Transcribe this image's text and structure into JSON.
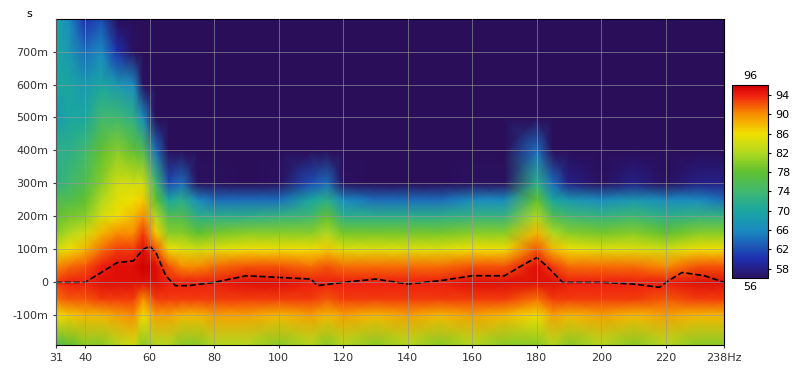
{
  "chart_data": {
    "type": "heatmap",
    "y_label": "s",
    "x": [
      31,
      35,
      40,
      45,
      50,
      55,
      58,
      62,
      66,
      70,
      75,
      80,
      90,
      100,
      110,
      115,
      120,
      130,
      140,
      150,
      160,
      170,
      180,
      185,
      190,
      200,
      210,
      220,
      230,
      238
    ],
    "y": [
      -0.19,
      -0.1,
      -0.05,
      0,
      0.05,
      0.1,
      0.15,
      0.2,
      0.25,
      0.3,
      0.4,
      0.5,
      0.6,
      0.7,
      0.8
    ],
    "cells": [
      [
        76,
        78,
        80,
        80,
        82,
        84,
        80,
        82,
        82,
        80,
        80,
        82,
        82,
        80,
        82,
        80,
        82,
        80,
        82,
        80,
        82,
        80,
        80,
        82,
        80,
        82,
        80,
        82,
        80,
        80
      ],
      [
        86,
        87,
        88,
        88,
        89,
        90,
        86,
        89,
        89,
        88,
        88,
        89,
        89,
        88,
        89,
        88,
        89,
        88,
        89,
        88,
        89,
        88,
        86,
        89,
        88,
        89,
        88,
        89,
        88,
        88
      ],
      [
        91,
        92,
        92,
        93,
        93,
        93,
        90,
        93,
        93,
        93,
        93,
        93,
        93,
        93,
        93,
        92,
        93,
        93,
        93,
        93,
        93,
        93,
        91,
        93,
        93,
        93,
        93,
        92,
        93,
        93
      ],
      [
        93,
        94,
        94,
        95,
        95,
        95,
        95,
        95,
        94,
        94,
        94,
        94,
        95,
        95,
        94,
        94,
        94,
        94,
        94,
        94,
        95,
        95,
        95,
        95,
        94,
        94,
        94,
        94,
        95,
        95
      ],
      [
        90,
        91,
        92,
        94,
        95,
        95,
        96,
        95,
        92,
        90,
        90,
        91,
        92,
        92,
        91,
        92,
        91,
        91,
        91,
        91,
        92,
        92,
        95,
        93,
        91,
        91,
        91,
        90,
        92,
        92
      ],
      [
        84,
        86,
        88,
        91,
        93,
        93,
        95,
        92,
        86,
        85,
        84,
        85,
        86,
        86,
        86,
        87,
        85,
        85,
        85,
        85,
        86,
        86,
        92,
        88,
        86,
        85,
        85,
        84,
        86,
        86
      ],
      [
        80,
        82,
        84,
        88,
        90,
        90,
        93,
        87,
        80,
        80,
        78,
        79,
        80,
        80,
        80,
        82,
        79,
        79,
        79,
        79,
        80,
        80,
        88,
        82,
        80,
        79,
        80,
        78,
        80,
        80
      ],
      [
        78,
        79,
        80,
        84,
        86,
        88,
        90,
        82,
        76,
        76,
        72,
        72,
        72,
        73,
        74,
        78,
        72,
        72,
        72,
        72,
        73,
        73,
        82,
        76,
        74,
        73,
        74,
        72,
        73,
        73
      ],
      [
        76,
        76,
        78,
        82,
        85,
        86,
        87,
        78,
        70,
        72,
        66,
        64,
        64,
        64,
        70,
        72,
        66,
        64,
        64,
        64,
        66,
        66,
        78,
        70,
        68,
        66,
        68,
        66,
        66,
        64
      ],
      [
        72,
        74,
        76,
        80,
        84,
        84,
        84,
        74,
        62,
        64,
        56,
        56,
        54,
        56,
        62,
        64,
        56,
        54,
        54,
        54,
        56,
        56,
        72,
        64,
        58,
        56,
        58,
        56,
        58,
        58
      ],
      [
        72,
        72,
        74,
        78,
        80,
        78,
        76,
        64,
        50,
        50,
        48,
        48,
        46,
        48,
        48,
        50,
        48,
        46,
        46,
        46,
        48,
        48,
        64,
        54,
        50,
        48,
        48,
        48,
        48,
        48
      ],
      [
        68,
        70,
        70,
        74,
        74,
        72,
        66,
        54,
        46,
        46,
        44,
        44,
        44,
        44,
        44,
        44,
        44,
        44,
        44,
        44,
        44,
        44,
        54,
        48,
        44,
        44,
        44,
        44,
        44,
        44
      ],
      [
        70,
        70,
        68,
        70,
        68,
        66,
        56,
        48,
        44,
        44,
        44,
        44,
        44,
        44,
        44,
        44,
        44,
        44,
        44,
        44,
        44,
        44,
        48,
        44,
        44,
        44,
        44,
        44,
        44,
        44
      ],
      [
        70,
        68,
        64,
        66,
        60,
        56,
        50,
        46,
        44,
        44,
        44,
        44,
        44,
        44,
        44,
        44,
        44,
        44,
        44,
        44,
        44,
        44,
        44,
        44,
        44,
        44,
        44,
        44,
        44,
        44
      ],
      [
        70,
        66,
        60,
        62,
        54,
        50,
        46,
        44,
        44,
        44,
        44,
        44,
        44,
        44,
        44,
        44,
        44,
        44,
        44,
        44,
        44,
        44,
        44,
        44,
        44,
        44,
        44,
        44,
        44,
        44
      ]
    ],
    "colorbar_range": [
      56,
      96
    ],
    "colorbar_ticks": [
      58,
      62,
      66,
      70,
      74,
      78,
      82,
      86,
      90,
      94
    ],
    "series": [
      {
        "type": "line",
        "color": "#000000",
        "line_style": "dashed",
        "x": [
          31,
          40,
          45,
          50,
          55,
          58,
          60,
          62,
          65,
          68,
          72,
          80,
          90,
          100,
          110,
          112,
          120,
          130,
          140,
          150,
          160,
          170,
          177,
          180,
          183,
          188,
          200,
          210,
          218,
          220,
          225,
          232,
          238
        ],
        "values": [
          0.0,
          0.0,
          0.03,
          0.06,
          0.065,
          0.1,
          0.11,
          0.09,
          0.02,
          -0.01,
          -0.01,
          0.0,
          0.02,
          0.015,
          0.01,
          -0.01,
          0.0,
          0.01,
          -0.005,
          0.005,
          0.02,
          0.02,
          0.06,
          0.075,
          0.05,
          0.0,
          0.0,
          -0.005,
          -0.015,
          0.0,
          0.03,
          0.02,
          0.0
        ]
      }
    ],
    "xlim": [
      31,
      238
    ],
    "xticks": [
      31,
      40,
      60,
      80,
      100,
      120,
      140,
      160,
      180,
      200,
      220,
      {
        "value": 238,
        "label": "238Hz"
      }
    ],
    "ylim": [
      -0.19,
      0.8
    ],
    "yticks": [
      {
        "value": -0.1,
        "label": "-100m"
      },
      0,
      {
        "value": 0.1,
        "label": "100m"
      },
      {
        "value": 0.2,
        "label": "200m"
      },
      {
        "value": 0.3,
        "label": "300m"
      },
      {
        "value": 0.4,
        "label": "400m"
      },
      {
        "value": 0.5,
        "label": "500m"
      },
      {
        "value": 0.6,
        "label": "600m"
      },
      {
        "value": 0.7,
        "label": "700m"
      }
    ],
    "grid": true
  }
}
